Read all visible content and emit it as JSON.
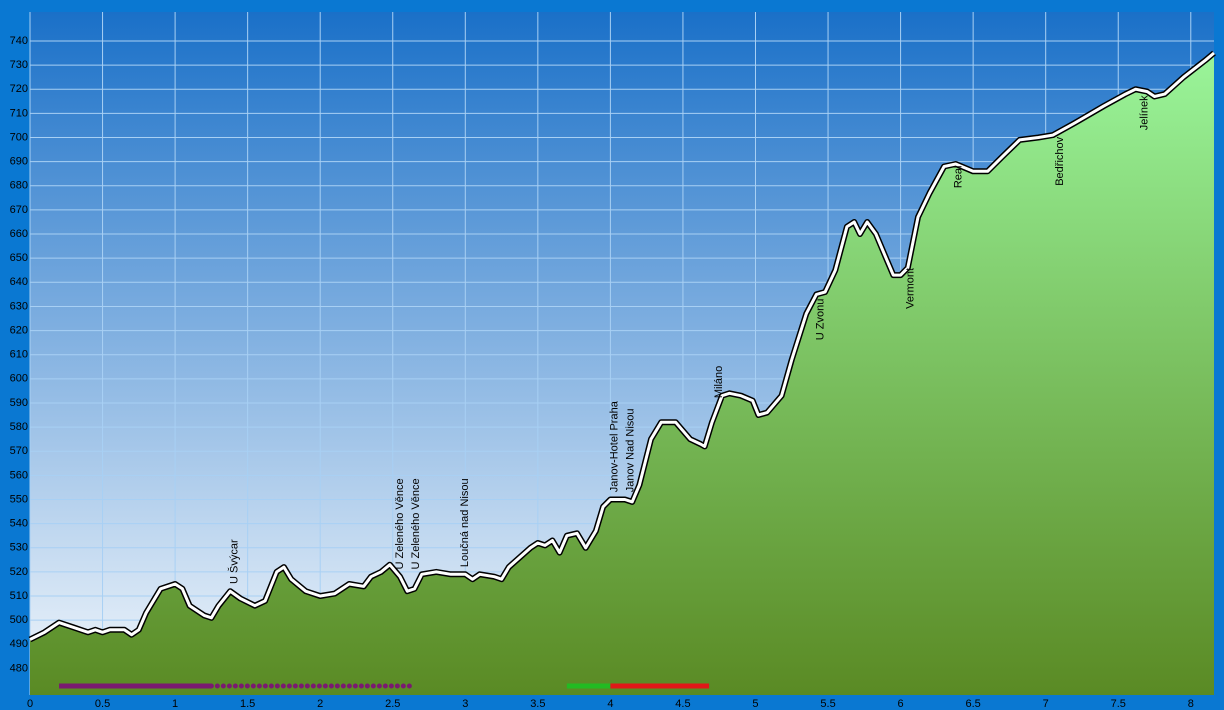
{
  "chart_data": {
    "type": "area",
    "x": [
      0,
      0.1,
      0.2,
      0.3,
      0.4,
      0.45,
      0.5,
      0.55,
      0.65,
      0.7,
      0.75,
      0.8,
      0.9,
      1.0,
      1.05,
      1.1,
      1.2,
      1.25,
      1.3,
      1.38,
      1.45,
      1.55,
      1.62,
      1.7,
      1.75,
      1.8,
      1.9,
      2.0,
      2.1,
      2.2,
      2.3,
      2.35,
      2.42,
      2.48,
      2.55,
      2.6,
      2.65,
      2.7,
      2.8,
      2.9,
      3.0,
      3.05,
      3.1,
      3.2,
      3.25,
      3.3,
      3.45,
      3.5,
      3.55,
      3.6,
      3.65,
      3.7,
      3.77,
      3.83,
      3.9,
      3.95,
      4.0,
      4.1,
      4.15,
      4.2,
      4.28,
      4.35,
      4.45,
      4.55,
      4.62,
      4.65,
      4.7,
      4.77,
      4.82,
      4.9,
      4.98,
      5.02,
      5.08,
      5.18,
      5.25,
      5.35,
      5.42,
      5.48,
      5.55,
      5.63,
      5.68,
      5.72,
      5.77,
      5.83,
      5.9,
      5.95,
      6.0,
      6.05,
      6.12,
      6.2,
      6.3,
      6.38,
      6.5,
      6.6,
      6.7,
      6.82,
      6.95,
      7.05,
      7.2,
      7.4,
      7.55,
      7.62,
      7.7,
      7.75,
      7.82,
      7.95,
      8.1,
      8.16
    ],
    "values": [
      492,
      495,
      499,
      497,
      495,
      496,
      495,
      496,
      496,
      494,
      496,
      503,
      513,
      515,
      513,
      506,
      502,
      501,
      506,
      512,
      509,
      506,
      508,
      520,
      522,
      517,
      512,
      510,
      511,
      515,
      514,
      518,
      520,
      523,
      518,
      512,
      513,
      519,
      520,
      519,
      519,
      517,
      519,
      518,
      517,
      522,
      530,
      532,
      531,
      533,
      528,
      535,
      536,
      530,
      537,
      547,
      550,
      550,
      549,
      556,
      575,
      582,
      582,
      575,
      573,
      572,
      582,
      593,
      594,
      593,
      591,
      585,
      586,
      593,
      608,
      627,
      635,
      636,
      645,
      663,
      665,
      660,
      665,
      660,
      650,
      643,
      643,
      646,
      667,
      677,
      688,
      689,
      686,
      686,
      692,
      699,
      700,
      701,
      706,
      713,
      718,
      720,
      719,
      717,
      718,
      725,
      732,
      735
    ],
    "xlim": [
      0,
      8.16
    ],
    "ylim": [
      469,
      752
    ],
    "xticks": [
      0,
      0.5,
      1,
      1.5,
      2,
      2.5,
      3,
      3.5,
      4,
      4.5,
      5,
      5.5,
      6,
      6.5,
      7,
      7.5,
      8
    ],
    "yticks": [
      480,
      490,
      500,
      510,
      520,
      530,
      540,
      550,
      560,
      570,
      580,
      590,
      600,
      610,
      620,
      630,
      640,
      650,
      660,
      670,
      680,
      690,
      700,
      710,
      720,
      730,
      740
    ],
    "grid": true,
    "annotations": [
      {
        "text": "U Švýcar",
        "x": 1.41,
        "y": 515
      },
      {
        "text": "U Zeleného Věnce",
        "x": 2.55,
        "y": 521
      },
      {
        "text": "U Zeleného Věnce",
        "x": 2.66,
        "y": 521
      },
      {
        "text": "Loučná nad Nisou",
        "x": 3.0,
        "y": 522
      },
      {
        "text": "Janov-Hotel Praha",
        "x": 4.03,
        "y": 553
      },
      {
        "text": "Janov Nad Nisou",
        "x": 4.14,
        "y": 553
      },
      {
        "text": "Miláno",
        "x": 4.75,
        "y": 592
      },
      {
        "text": "U Zvonu",
        "x": 5.45,
        "y": 616
      },
      {
        "text": "Vermont",
        "x": 6.07,
        "y": 629
      },
      {
        "text": "Real",
        "x": 6.4,
        "y": 679
      },
      {
        "text": "Bedřichov",
        "x": 7.1,
        "y": 680
      },
      {
        "text": "Jelínek",
        "x": 7.68,
        "y": 703
      }
    ],
    "segments": [
      {
        "color": "#7a1a70",
        "style": "solid",
        "start": 0.2,
        "end": 1.25
      },
      {
        "color": "#7a1a70",
        "style": "dotted",
        "start": 1.25,
        "end": 2.65
      },
      {
        "color": "#22bb22",
        "style": "solid",
        "start": 3.7,
        "end": 4.0
      },
      {
        "color": "#e01818",
        "style": "solid",
        "start": 4.0,
        "end": 4.68
      }
    ]
  }
}
